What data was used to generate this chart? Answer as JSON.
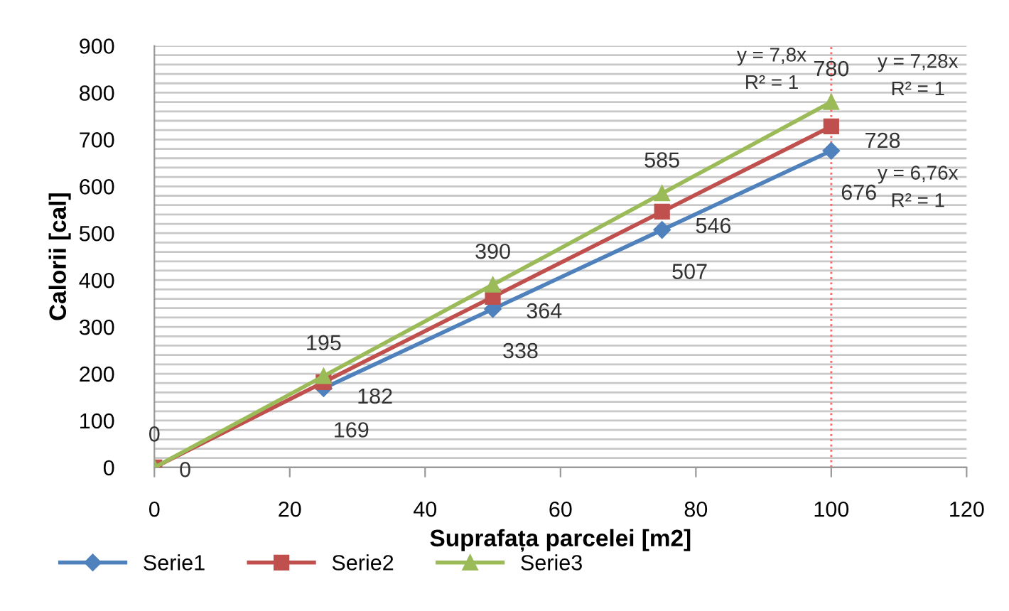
{
  "chart_data": {
    "type": "line",
    "xlabel": "Suprafața parcelei [m2]",
    "ylabel": "Calorii [cal]",
    "x": [
      0,
      25,
      50,
      75,
      100
    ],
    "series": [
      {
        "name": "Serie1",
        "color": "#4f81bd",
        "marker": "diamond",
        "values": [
          null,
          169,
          338,
          507,
          676
        ],
        "value_labels": [
          null,
          "169",
          "338",
          "507",
          "676"
        ]
      },
      {
        "name": "Serie2",
        "color": "#c0504d",
        "marker": "square",
        "values": [
          0,
          182,
          364,
          546,
          728
        ],
        "value_labels": [
          "0",
          "182",
          "364",
          "546",
          "728"
        ]
      },
      {
        "name": "Serie3",
        "color": "#9bbb59",
        "marker": "triangle",
        "values": [
          0,
          195,
          390,
          585,
          780
        ],
        "value_labels": [
          "0",
          "195",
          "390",
          "585",
          "780"
        ]
      }
    ],
    "xlim": [
      0,
      120
    ],
    "xticks": [
      0,
      20,
      40,
      60,
      80,
      100,
      120
    ],
    "ylim": [
      0,
      900
    ],
    "yticks": [
      0,
      {
        "value": 20,
        "label": null
      },
      {
        "value": 40,
        "label": null
      },
      {
        "value": 60,
        "label": null
      },
      {
        "value": 80,
        "label": null
      },
      100,
      {
        "value": 120,
        "label": null
      },
      {
        "value": 140,
        "label": null
      },
      {
        "value": 160,
        "label": null
      },
      {
        "value": 180,
        "label": null
      },
      200,
      {
        "value": 220,
        "label": null
      },
      {
        "value": 240,
        "label": null
      },
      {
        "value": 260,
        "label": null
      },
      {
        "value": 280,
        "label": null
      },
      300,
      {
        "value": 320,
        "label": null
      },
      {
        "value": 340,
        "label": null
      },
      {
        "value": 360,
        "label": null
      },
      {
        "value": 380,
        "label": null
      },
      400,
      {
        "value": 420,
        "label": null
      },
      {
        "value": 440,
        "label": null
      },
      {
        "value": 460,
        "label": null
      },
      {
        "value": 480,
        "label": null
      },
      500,
      {
        "value": 520,
        "label": null
      },
      {
        "value": 540,
        "label": null
      },
      {
        "value": 560,
        "label": null
      },
      {
        "value": 580,
        "label": null
      },
      600,
      {
        "value": 620,
        "label": null
      },
      {
        "value": 640,
        "label": null
      },
      {
        "value": 660,
        "label": null
      },
      {
        "value": 680,
        "label": null
      },
      700,
      {
        "value": 720,
        "label": null
      },
      {
        "value": 740,
        "label": null
      },
      {
        "value": 760,
        "label": null
      },
      {
        "value": 780,
        "label": null
      },
      800,
      {
        "value": 820,
        "label": null
      },
      {
        "value": 840,
        "label": null
      },
      {
        "value": 860,
        "label": null
      },
      {
        "value": 880,
        "label": null
      },
      900
    ],
    "grid": "y",
    "legend": "bottom left",
    "ref_lines": [
      {
        "axis": "x",
        "value": 100,
        "color": "#ff6666",
        "line_style": "dotted"
      }
    ],
    "annotations": [
      "y = 7,8x",
      "R² = 1",
      "y = 7,28x",
      "R² = 1",
      "y = 6,76x",
      "R² = 1"
    ]
  }
}
